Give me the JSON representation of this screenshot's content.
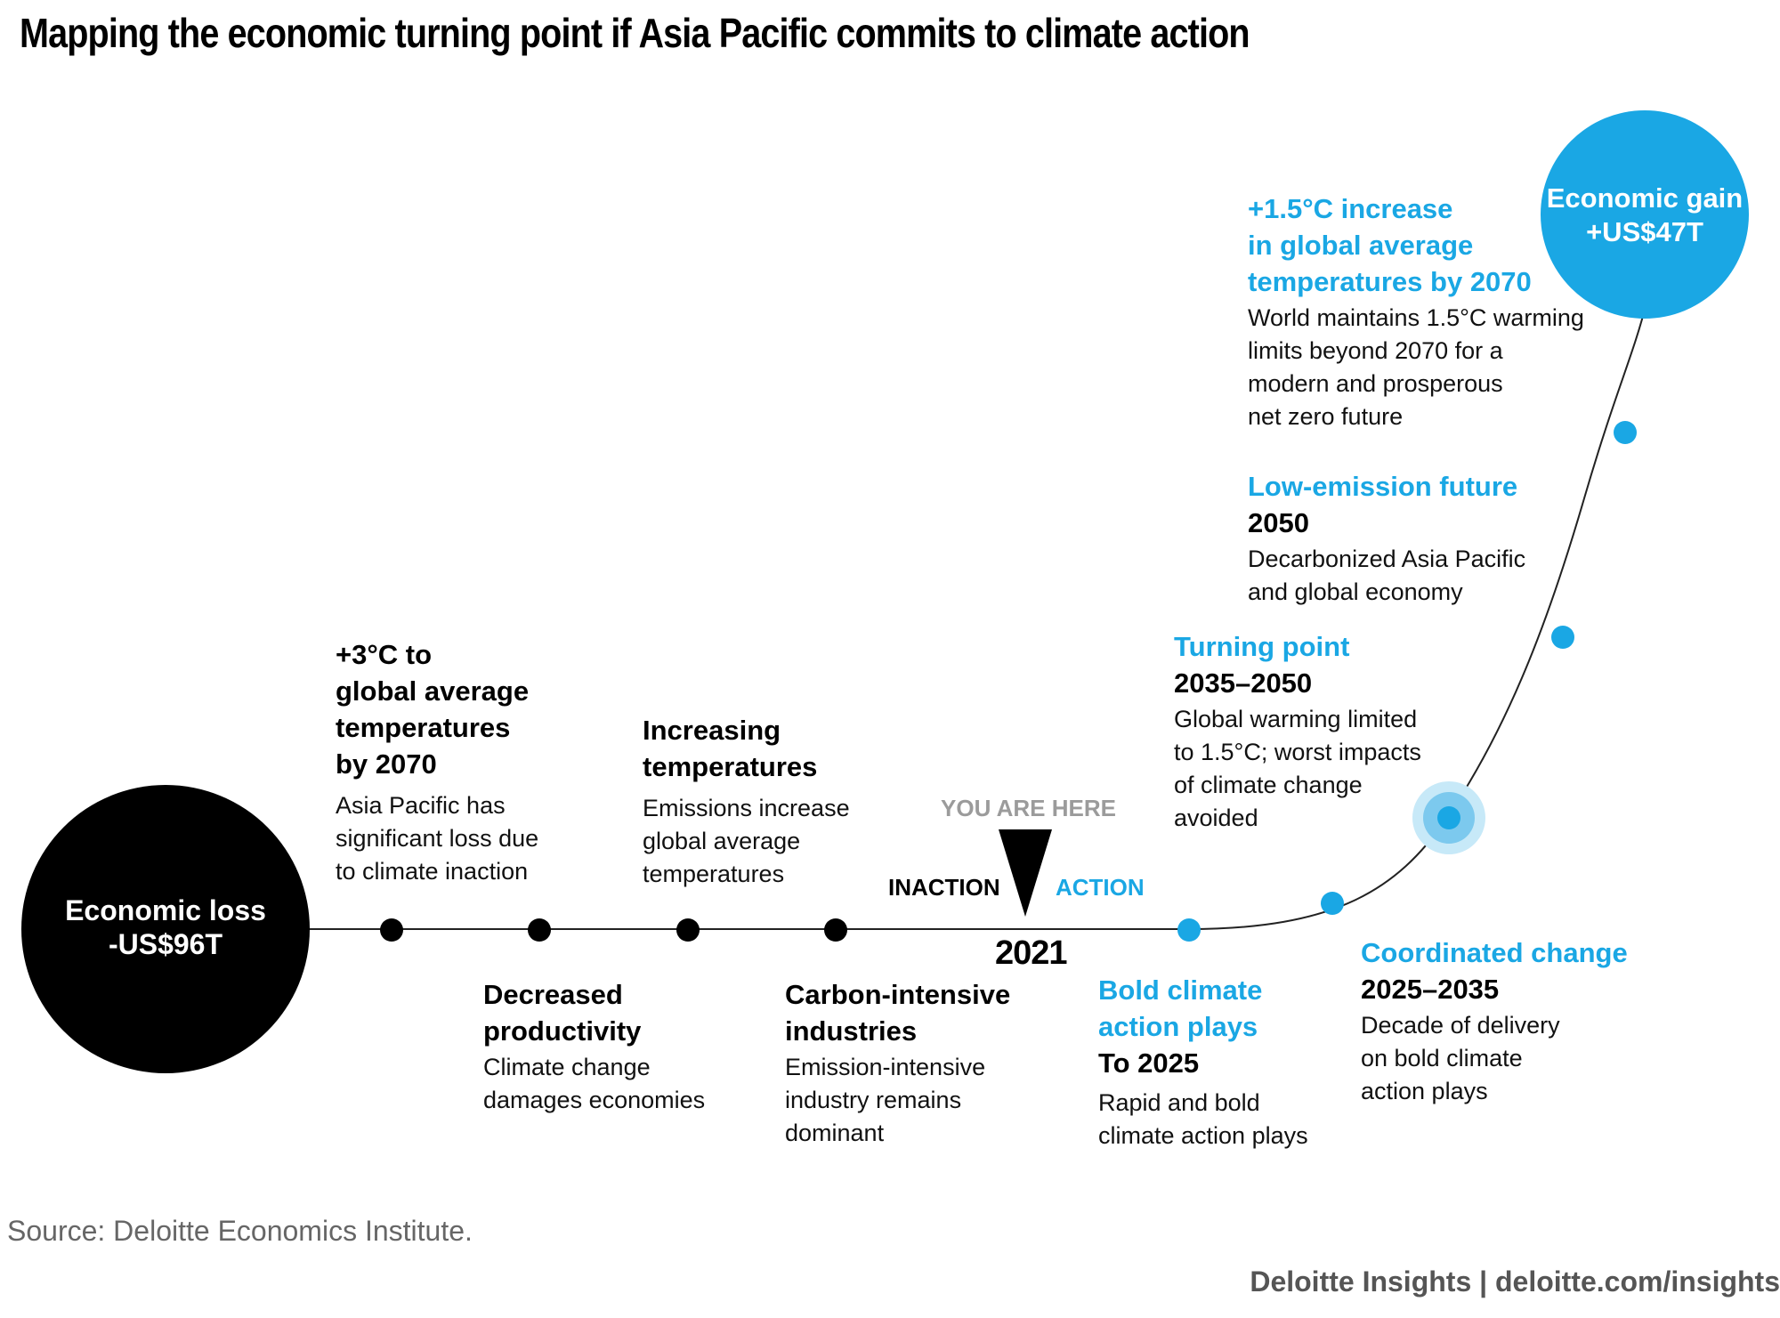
{
  "title": "Mapping the economic turning point if Asia Pacific commits to climate action",
  "colors": {
    "accent_blue": "#1aa7e4",
    "loss_black": "#000000",
    "halo_blue": "#a9dcf4"
  },
  "loss_circle": {
    "text": "Economic loss\n-US$96T"
  },
  "gain_circle": {
    "text": "Economic gain\n+US$47T"
  },
  "you_are_here": "YOU ARE HERE",
  "inaction": "INACTION",
  "action": "ACTION",
  "year_now": "2021",
  "milestones": [
    {
      "heading": "+3°C to\nglobal average\ntemperatures\nby 2070",
      "body": "Asia Pacific has\nsignificant loss due\nto climate inaction"
    },
    {
      "heading": "Decreased\nproductivity",
      "body": "Climate change\ndamages economies"
    },
    {
      "heading": "Increasing\ntemperatures",
      "body": "Emissions increase\nglobal average\ntemperatures"
    },
    {
      "heading": "Carbon-intensive\nindustries",
      "body": "Emission-intensive\nindustry remains\ndominant"
    },
    {
      "heading": "Bold climate\naction plays",
      "subheading": "To 2025",
      "body": "Rapid and bold\nclimate action plays"
    },
    {
      "heading": "Coordinated change",
      "subheading": "2025–2035",
      "body": "Decade of delivery\non bold climate\naction plays"
    },
    {
      "heading": "Turning point",
      "subheading": "2035–2050",
      "body": "Global warming limited\nto 1.5°C; worst impacts\nof climate change\navoided"
    },
    {
      "heading": "Low-emission future",
      "subheading": "2050",
      "body": "Decarbonized Asia Pacific\nand global economy"
    },
    {
      "heading": "+1.5°C increase\nin global average\ntemperatures by 2070",
      "body": "World maintains 1.5°C warming\nlimits beyond 2070 for a\nmodern and prosperous\nnet zero future"
    }
  ],
  "source": "Source: Deloitte Economics Institute.",
  "brand": "Deloitte Insights | deloitte.com/insights"
}
